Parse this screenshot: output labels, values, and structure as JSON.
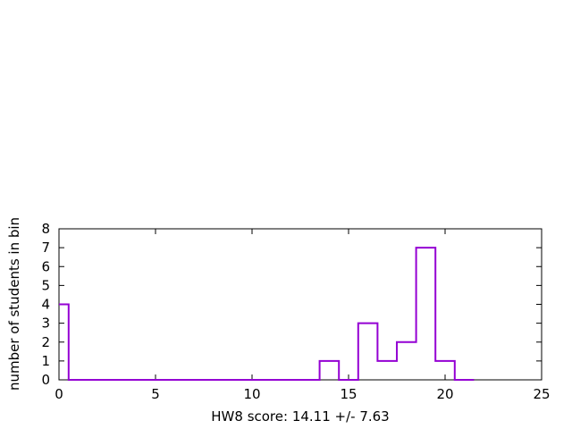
{
  "chart_data": {
    "type": "histogram-step",
    "title": "",
    "xlabel": "HW8 score: 14.11 +/- 7.63",
    "ylabel": "number of students in bin",
    "xlim": [
      0,
      25
    ],
    "ylim": [
      0,
      8
    ],
    "xticks": [
      0,
      5,
      10,
      15,
      20,
      25
    ],
    "yticks": [
      0,
      1,
      2,
      3,
      4,
      5,
      6,
      7,
      8
    ],
    "grid": false,
    "legend": "none",
    "line_color": "#9400d3",
    "bin_width": 1,
    "bins": [
      {
        "center": 0,
        "count": 4
      },
      {
        "center": 1,
        "count": 0
      },
      {
        "center": 2,
        "count": 0
      },
      {
        "center": 3,
        "count": 0
      },
      {
        "center": 4,
        "count": 0
      },
      {
        "center": 5,
        "count": 0
      },
      {
        "center": 6,
        "count": 0
      },
      {
        "center": 7,
        "count": 0
      },
      {
        "center": 8,
        "count": 0
      },
      {
        "center": 9,
        "count": 0
      },
      {
        "center": 10,
        "count": 0
      },
      {
        "center": 11,
        "count": 0
      },
      {
        "center": 12,
        "count": 0
      },
      {
        "center": 13,
        "count": 0
      },
      {
        "center": 14,
        "count": 1
      },
      {
        "center": 15,
        "count": 0
      },
      {
        "center": 16,
        "count": 3
      },
      {
        "center": 17,
        "count": 1
      },
      {
        "center": 18,
        "count": 2
      },
      {
        "center": 19,
        "count": 7
      },
      {
        "center": 20,
        "count": 1
      },
      {
        "center": 21,
        "count": 0
      }
    ]
  }
}
